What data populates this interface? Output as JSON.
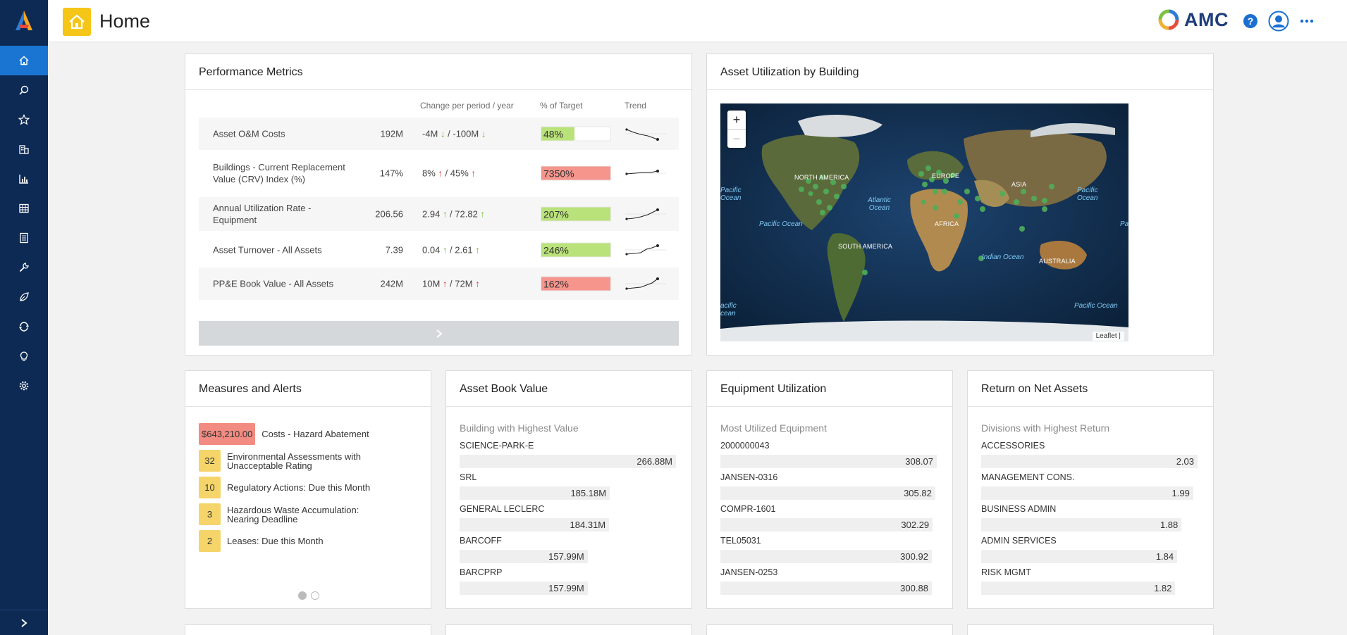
{
  "header": {
    "title": "Home",
    "brand": "AMC"
  },
  "sidebar": {
    "icons": [
      "home-icon",
      "search-icon",
      "star-icon",
      "building-icon",
      "chart-icon",
      "grid-icon",
      "document-icon",
      "wrench-icon",
      "leaf-icon",
      "workflow-icon",
      "lightbulb-icon",
      "gear-icon"
    ],
    "active_color": "#1a75d2",
    "bg_color": "#0d2a55"
  },
  "performance": {
    "title": "Performance Metrics",
    "col_change": "Change per period / year",
    "col_target": "% of Target",
    "col_trend": "Trend",
    "rows": [
      {
        "name": "Asset O&M Costs",
        "value": "192M",
        "chg_period": "-4M",
        "chg_year": "-100M",
        "dir": "down",
        "target": "48%",
        "target_pct": 48,
        "target_color": "#b9e27a"
      },
      {
        "name": "Buildings - Current Replacement Value (CRV) Index (%)",
        "value": "147%",
        "chg_period": "8%",
        "chg_year": "45%",
        "dir": "up-red",
        "target": "7350%",
        "target_pct": 100,
        "target_color": "#f5958c"
      },
      {
        "name": "Annual Utilization Rate - Equipment",
        "value": "206.56",
        "chg_period": "2.94",
        "chg_year": "72.82",
        "dir": "up-green",
        "target": "207%",
        "target_pct": 100,
        "target_color": "#b9e27a"
      },
      {
        "name": "Asset Turnover - All Assets",
        "value": "7.39",
        "chg_period": "0.04",
        "chg_year": "2.61",
        "dir": "up-green",
        "target": "246%",
        "target_pct": 100,
        "target_color": "#b9e27a"
      },
      {
        "name": "PP&E Book Value - All Assets",
        "value": "242M",
        "chg_period": "10M",
        "chg_year": "72M",
        "dir": "up-red",
        "target": "162%",
        "target_pct": 100,
        "target_color": "#f5958c"
      }
    ]
  },
  "map": {
    "title": "Asset Utilization by Building",
    "zoom_in": "+",
    "zoom_out": "−",
    "attribution": "Leaflet |",
    "continents": [
      "NORTH AMERICA",
      "EUROPE",
      "ASIA",
      "AFRICA",
      "SOUTH AMERICA",
      "AUSTRALIA"
    ],
    "oceans": [
      "Pacific Ocean",
      "Atlantic Ocean",
      "Pacific Ocean",
      "Indian Ocean",
      "Pacific Ocean"
    ],
    "ocean_fragments": [
      "Pacific",
      "Ocean",
      "Pacific",
      "Ocean",
      "Pa",
      "acific",
      "cean"
    ]
  },
  "alerts": {
    "title": "Measures and Alerts",
    "items": [
      {
        "badge": "$643,210.00",
        "label": "Costs - Hazard Abatement",
        "red": true
      },
      {
        "badge": "32",
        "label": "Environmental Assessments with Unacceptable Rating",
        "red": false
      },
      {
        "badge": "10",
        "label": "Regulatory Actions: Due this Month",
        "red": false
      },
      {
        "badge": "3",
        "label": "Hazardous Waste Accumulation: Nearing Deadline",
        "red": false
      },
      {
        "badge": "2",
        "label": "Leases: Due this Month",
        "red": false
      }
    ]
  },
  "book_value": {
    "title": "Asset Book Value",
    "subtitle": "Building with Highest Value",
    "items": [
      {
        "name": "SCIENCE-PARK-E",
        "value": "266.88M",
        "pct": 100
      },
      {
        "name": "SRL",
        "value": "185.18M",
        "pct": 69.4
      },
      {
        "name": "GENERAL LECLERC",
        "value": "184.31M",
        "pct": 69.1
      },
      {
        "name": "BARCOFF",
        "value": "157.99M",
        "pct": 59.2
      },
      {
        "name": "BARCPRP",
        "value": "157.99M",
        "pct": 59.2
      }
    ]
  },
  "equipment": {
    "title": "Equipment Utilization",
    "subtitle": "Most Utilized Equipment",
    "items": [
      {
        "name": "2000000043",
        "value": "308.07",
        "pct": 100
      },
      {
        "name": "JANSEN-0316",
        "value": "305.82",
        "pct": 99.3
      },
      {
        "name": "COMPR-1601",
        "value": "302.29",
        "pct": 98.1
      },
      {
        "name": "TEL05031",
        "value": "300.92",
        "pct": 97.7
      },
      {
        "name": "JANSEN-0253",
        "value": "300.88",
        "pct": 97.7
      }
    ]
  },
  "rona": {
    "title": "Return on Net Assets",
    "subtitle": "Divisions with Highest Return",
    "items": [
      {
        "name": "ACCESSORIES",
        "value": "2.03",
        "pct": 100
      },
      {
        "name": "MANAGEMENT CONS.",
        "value": "1.99",
        "pct": 98.0
      },
      {
        "name": "BUSINESS ADMIN",
        "value": "1.88",
        "pct": 92.6
      },
      {
        "name": "ADMIN SERVICES",
        "value": "1.84",
        "pct": 90.6
      },
      {
        "name": "RISK MGMT",
        "value": "1.82",
        "pct": 89.7
      }
    ]
  }
}
